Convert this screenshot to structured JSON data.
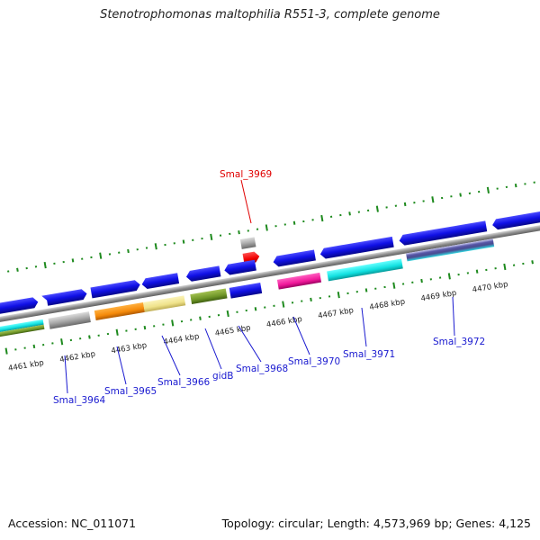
{
  "title": "Stenotrophomonas maltophilia R551-3, complete genome",
  "footer": {
    "accession": "Accession: NC_011071",
    "summary": "Topology: circular; Length: 4,573,969 bp; Genes: 4,125"
  },
  "kbp_labels": [
    "4461 kbp",
    "4462 kbp",
    "4463 kbp",
    "4464 kbp",
    "4465 kbp",
    "4466 kbp",
    "4467 kbp",
    "4468 kbp",
    "4469 kbp",
    "4470 kbp"
  ],
  "colors": {
    "gene_blue": "#1010e6",
    "highlight_red": "#e00000",
    "label_blue": "#1a1ad0",
    "tick_green": "#1e8a1e",
    "backbone_gray": "#8c8c8c"
  },
  "genes": [
    {
      "label": "Smal_3964",
      "color": "#1a1ad0"
    },
    {
      "label": "Smal_3965",
      "color": "#1a1ad0"
    },
    {
      "label": "Smal_3966",
      "color": "#1a1ad0"
    },
    {
      "label": "gidB",
      "color": "#1a1ad0"
    },
    {
      "label": "Smal_3968",
      "color": "#1a1ad0"
    },
    {
      "label": "Smal_3969",
      "color": "#e00000"
    },
    {
      "label": "Smal_3970",
      "color": "#1a1ad0"
    },
    {
      "label": "Smal_3971",
      "color": "#1a1ad0"
    },
    {
      "label": "Smal_3972",
      "color": "#1a1ad0"
    }
  ]
}
